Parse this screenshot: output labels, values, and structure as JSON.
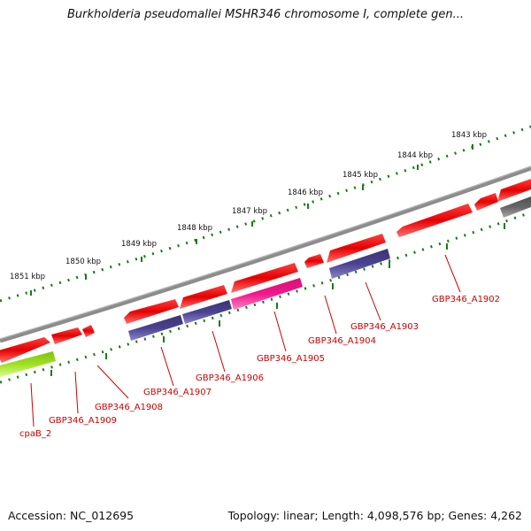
{
  "title": "Burkholderia pseudomallei MSHR346 chromosome I, complete gen...",
  "footer": {
    "accession": "Accession: NC_012695",
    "summary": "Topology: linear; Length: 4,098,576 bp; Genes: 4,262"
  },
  "ruler_labels": [
    "1851 kbp",
    "1850 kbp",
    "1849 kbp",
    "1848 kbp",
    "1847 kbp",
    "1846 kbp",
    "1845 kbp",
    "1844 kbp",
    "1843 kbp"
  ],
  "gene_labels": [
    "cpaB_2",
    "GBP346_A1909",
    "GBP346_A1908",
    "GBP346_A1907",
    "GBP346_A1906",
    "GBP346_A1905",
    "GBP346_A1904",
    "GBP346_A1903",
    "GBP346_A1902"
  ],
  "colors": {
    "forward_gene": "#e60000",
    "track_purple": "#4a4290",
    "track_magenta": "#f0188c",
    "track_green": "#a0e020",
    "backbone": "#8c8c8c",
    "dark_gray_gene": "#666666",
    "ticks": "#1a7a1a",
    "label_text": "#cc0000"
  }
}
